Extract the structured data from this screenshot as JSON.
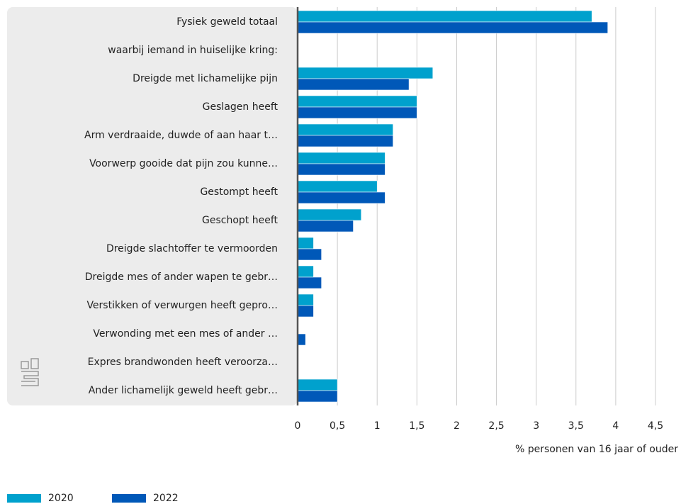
{
  "chart_data": {
    "type": "hbar",
    "categories": [
      "Fysiek geweld totaal",
      "waarbij iemand in huiselijke kring:",
      "Dreigde met lichamelijke pijn",
      "Geslagen heeft",
      "Arm verdraaide, duwde of aan haar t…",
      "Voorwerp gooide dat pijn zou kunne…",
      "Gestompt heeft",
      "Geschopt heeft",
      "Dreigde slachtoffer te vermoorden",
      "Dreigde mes of ander wapen te gebr…",
      "Verstikken of verwurgen heeft gepro…",
      "Verwonding met een mes of ander …",
      "Expres brandwonden heeft veroorza…",
      "Ander lichamelijk geweld heeft gebr…"
    ],
    "series": [
      {
        "name": "2020",
        "color": "#00a1cd",
        "values": [
          3.7,
          null,
          1.7,
          1.5,
          1.2,
          1.1,
          1.0,
          0.8,
          0.2,
          0.2,
          0.2,
          null,
          null,
          0.5
        ]
      },
      {
        "name": "2022",
        "color": "#0058b8",
        "values": [
          3.9,
          null,
          1.4,
          1.5,
          1.2,
          1.1,
          1.1,
          0.7,
          0.3,
          0.3,
          0.2,
          0.1,
          null,
          0.5
        ]
      }
    ],
    "xlim": [
      0,
      4.5
    ],
    "xticks": [
      0,
      {
        "value": 0.5,
        "label": "0,5"
      },
      1,
      {
        "value": 1.5,
        "label": "1,5"
      },
      2,
      {
        "value": 2.5,
        "label": "2,5"
      },
      3,
      {
        "value": 3.5,
        "label": "3,5"
      },
      4,
      {
        "value": 4.5,
        "label": "4,5"
      }
    ],
    "xlabel": "% personen van 16 jaar of ouder",
    "grid": true,
    "legend": "bottom-left"
  }
}
